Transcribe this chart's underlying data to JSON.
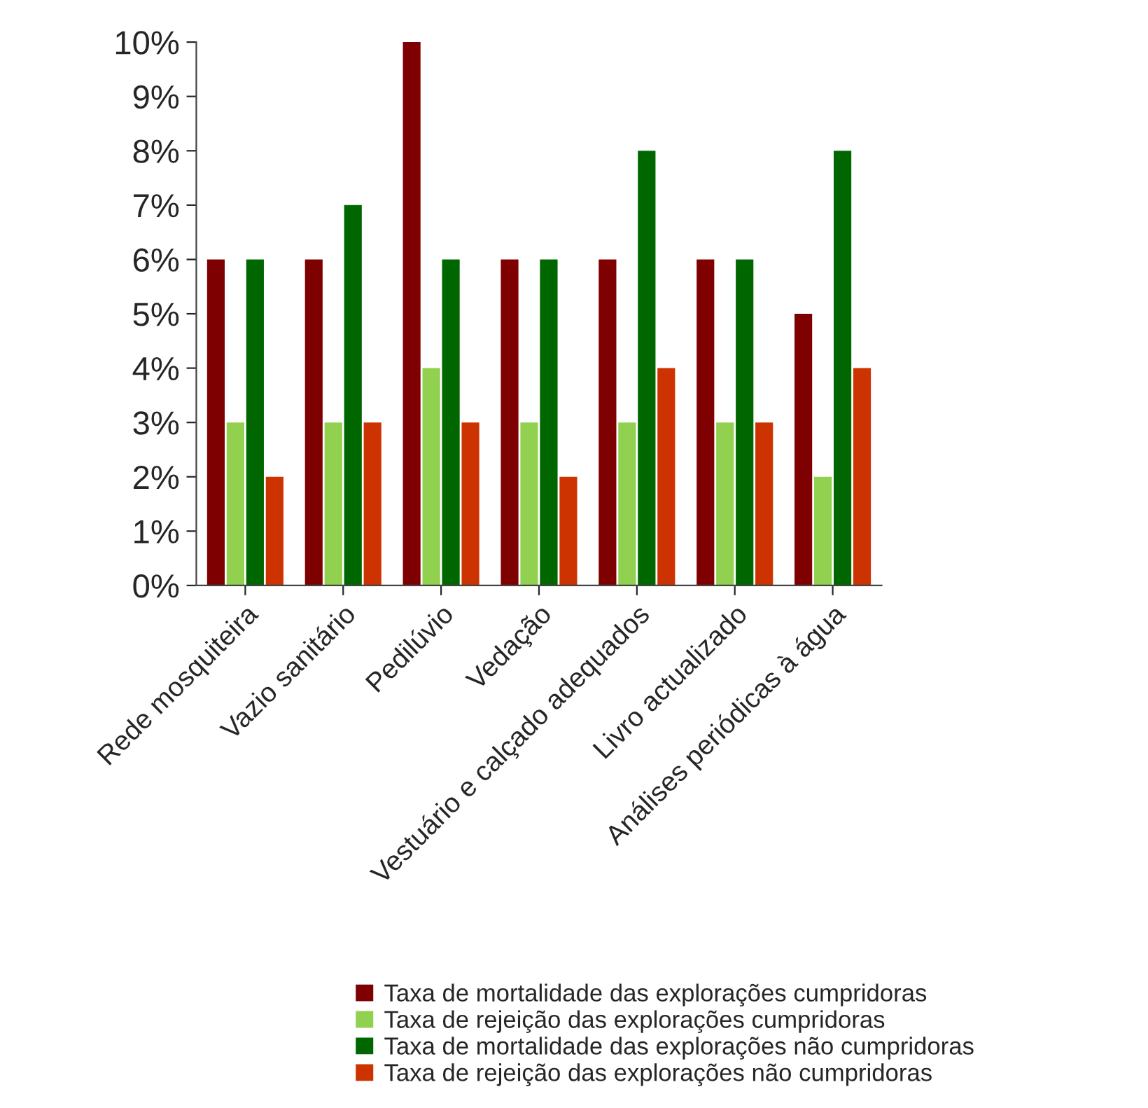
{
  "chart_data": {
    "type": "bar",
    "categories": [
      "Rede mosquiteira",
      "Vazio sanitário",
      "Pedilúvio",
      "Vedação",
      "Vestuário e calçado adequados",
      "Livro actualizado",
      "Análises periódicas à água"
    ],
    "series": [
      {
        "name": "Taxa de mortalidade das explorações cumpridoras",
        "color": "#7f0000",
        "values": [
          6,
          6,
          10,
          6,
          6,
          6,
          5
        ]
      },
      {
        "name": "Taxa de rejeição das explorações cumpridoras",
        "color": "#92d050",
        "values": [
          3,
          3,
          4,
          3,
          3,
          3,
          2
        ]
      },
      {
        "name": "Taxa de mortalidade das explorações não cumpridoras",
        "color": "#006600",
        "values": [
          6,
          7,
          6,
          6,
          8,
          6,
          8
        ]
      },
      {
        "name": "Taxa de rejeição das explorações não cumpridoras",
        "color": "#cc3300",
        "values": [
          2,
          3,
          3,
          2,
          4,
          3,
          4
        ]
      }
    ],
    "ylim": [
      0,
      10
    ],
    "yticks": [
      {
        "value": 0,
        "label": "0%"
      },
      {
        "value": 1,
        "label": "1%"
      },
      {
        "value": 2,
        "label": "2%"
      },
      {
        "value": 3,
        "label": "3%"
      },
      {
        "value": 4,
        "label": "4%"
      },
      {
        "value": 5,
        "label": "5%"
      },
      {
        "value": 6,
        "label": "6%"
      },
      {
        "value": 7,
        "label": "7%"
      },
      {
        "value": 8,
        "label": "8%"
      },
      {
        "value": 9,
        "label": "9%"
      },
      {
        "value": 10,
        "label": "10%"
      }
    ],
    "grid": false,
    "legend": "bottom"
  }
}
